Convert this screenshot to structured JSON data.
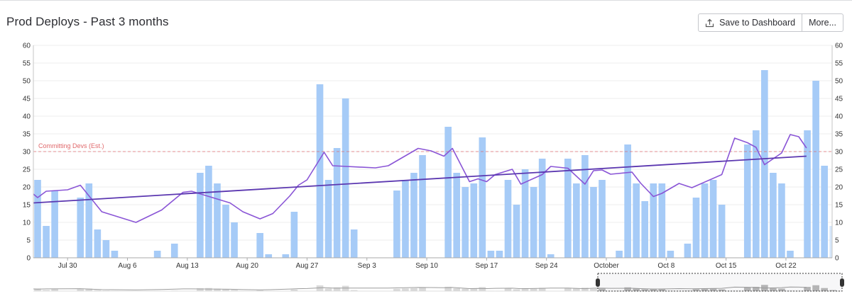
{
  "header": {
    "title": "Prod Deploys - Past 3 months",
    "save_label": "Save to Dashboard",
    "more_label": "More..."
  },
  "icons": {
    "save": "upload-icon"
  },
  "colors": {
    "bar": "#a6cbf7",
    "bar_faded": "#d6e6fa",
    "avg_line": "#8a55d6",
    "trend_line": "#5b37b0",
    "threshold": "#e0686b",
    "axis": "#c6c6c6",
    "grid": "#ececec"
  },
  "chart_data": {
    "type": "bar",
    "title": "Prod Deploys - Past 3 months",
    "ylim": [
      0,
      60
    ],
    "yticks": [
      0,
      5,
      10,
      15,
      20,
      25,
      30,
      35,
      40,
      45,
      50,
      55,
      60
    ],
    "x_tick_labels": [
      {
        "day": 4,
        "label": "Jul 30"
      },
      {
        "day": 11,
        "label": "Aug 6"
      },
      {
        "day": 18,
        "label": "Aug 13"
      },
      {
        "day": 25,
        "label": "Aug 20"
      },
      {
        "day": 32,
        "label": "Aug 27"
      },
      {
        "day": 39,
        "label": "Sep 3"
      },
      {
        "day": 46,
        "label": "Sep 10"
      },
      {
        "day": 53,
        "label": "Sep 17"
      },
      {
        "day": 60,
        "label": "Sep 24"
      },
      {
        "day": 67,
        "label": "October"
      },
      {
        "day": 74,
        "label": "Oct 8"
      },
      {
        "day": 81,
        "label": "Oct 15"
      },
      {
        "day": 88,
        "label": "Oct 22"
      }
    ],
    "days": 93.4,
    "series": [
      {
        "name": "Prod Deploys",
        "values": [
          22,
          9,
          19,
          0,
          0,
          17,
          21,
          8,
          5,
          2,
          0,
          0,
          0,
          0,
          2,
          0,
          4,
          0,
          0,
          24,
          26,
          21,
          15,
          10,
          0,
          0,
          7,
          1,
          0,
          1,
          13,
          0,
          0,
          49,
          22,
          31,
          45,
          8,
          0,
          0,
          0,
          0,
          19,
          22,
          24,
          29,
          0,
          0,
          37,
          24,
          20,
          21,
          34,
          2,
          2,
          22,
          15,
          25,
          20,
          28,
          1,
          0,
          28,
          21,
          29,
          20,
          22,
          0,
          2,
          32,
          21,
          16,
          21,
          21,
          2,
          0,
          4,
          17,
          21,
          22,
          15,
          0,
          0,
          32,
          36,
          53,
          24,
          21,
          2,
          0,
          36,
          50,
          26,
          9
        ]
      },
      {
        "name": "Moving Average",
        "points": [
          [
            0,
            18
          ],
          [
            0.5,
            17
          ],
          [
            1.5,
            18.8
          ],
          [
            4,
            19.2
          ],
          [
            5.5,
            20.5
          ],
          [
            8,
            13
          ],
          [
            12,
            10
          ],
          [
            15,
            13.5
          ],
          [
            17.5,
            18.5
          ],
          [
            18.5,
            18.8
          ],
          [
            23,
            15.5
          ],
          [
            24.5,
            13
          ],
          [
            26.5,
            11
          ],
          [
            28,
            12.5
          ],
          [
            30,
            17.5
          ],
          [
            31,
            20.5
          ],
          [
            32,
            22
          ],
          [
            34,
            29.8
          ],
          [
            35,
            26
          ],
          [
            40,
            25.4
          ],
          [
            41.5,
            26
          ],
          [
            45,
            30.9
          ],
          [
            46.5,
            30.2
          ],
          [
            48,
            28.7
          ],
          [
            49,
            30.9
          ],
          [
            51,
            21.5
          ],
          [
            52,
            22.3
          ],
          [
            53,
            21.5
          ],
          [
            54,
            23.5
          ],
          [
            56,
            25
          ],
          [
            57,
            20.8
          ],
          [
            59.5,
            23.5
          ],
          [
            60.5,
            25.8
          ],
          [
            62.5,
            25.3
          ],
          [
            64.5,
            20.8
          ],
          [
            65.5,
            24.6
          ],
          [
            66.5,
            24.8
          ],
          [
            67.5,
            23.6
          ],
          [
            70,
            24.2
          ],
          [
            71,
            21.1
          ],
          [
            72.5,
            17.3
          ],
          [
            73.5,
            18.2
          ],
          [
            75.5,
            21
          ],
          [
            77,
            19.8
          ],
          [
            80.5,
            23.5
          ],
          [
            82,
            33.8
          ],
          [
            83.5,
            32.5
          ],
          [
            84.5,
            31.2
          ],
          [
            85.5,
            26.3
          ],
          [
            87.5,
            29.6
          ],
          [
            88.5,
            34.8
          ],
          [
            89.5,
            34.2
          ],
          [
            90.4,
            31
          ]
        ]
      },
      {
        "name": "Trend",
        "points": [
          [
            0,
            15.5
          ],
          [
            90.4,
            28.7
          ]
        ]
      }
    ],
    "threshold": {
      "label": "Committing Devs (Est.)",
      "value": 30
    },
    "navigator": {
      "selected_from_day": 66,
      "selected_to_day": 93.4
    }
  }
}
